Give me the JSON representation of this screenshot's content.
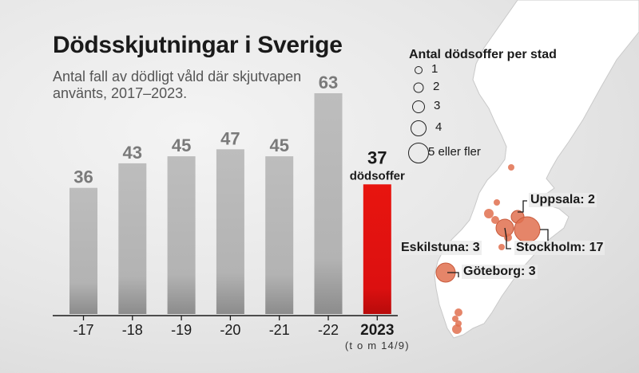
{
  "title": "Dödsskjutningar i Sverige",
  "subtitle": "Antal fall av dödligt våld där skjutvapen använts, 2017–2023.",
  "chart_data": {
    "type": "bar",
    "categories": [
      "-17",
      "-18",
      "-19",
      "-20",
      "-21",
      "-22",
      "2023"
    ],
    "values": [
      36,
      43,
      45,
      47,
      45,
      63,
      37
    ],
    "highlight_index": 6,
    "highlight_value_suffix": "dödsoffer",
    "highlight_category_note": "(t o m 14/9)",
    "colors": {
      "bar": "#b7b7b7",
      "highlight": "#e01414",
      "value_label": "#7a7a7a"
    },
    "ylim": [
      0,
      70
    ],
    "grid": false
  },
  "map": {
    "legend_title": "Antal dödsoffer per stad",
    "legend": [
      {
        "label": "1",
        "value": 1
      },
      {
        "label": "2",
        "value": 2
      },
      {
        "label": "3",
        "value": 3
      },
      {
        "label": "4",
        "value": 4
      },
      {
        "label": "5 eller fler",
        "value": 5
      }
    ],
    "city_labels": [
      {
        "text": "Uppsala: 2"
      },
      {
        "text": "Eskilstuna: 3"
      },
      {
        "text": "Stockholm: 17"
      },
      {
        "text": "Göteborg: 3"
      }
    ],
    "marker_color": "#e0704f"
  }
}
